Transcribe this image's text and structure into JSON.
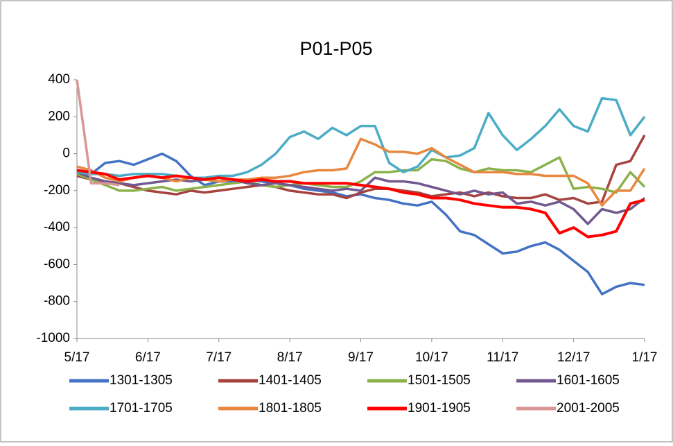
{
  "chart_data": {
    "type": "line",
    "title": "P01-P05",
    "categories": [
      "5/17",
      null,
      null,
      null,
      null,
      "6/17",
      null,
      null,
      null,
      null,
      "7/17",
      null,
      null,
      null,
      null,
      "8/17",
      null,
      null,
      null,
      null,
      "9/17",
      null,
      null,
      null,
      null,
      "10/17",
      null,
      null,
      null,
      null,
      "11/17",
      null,
      null,
      null,
      null,
      "12/17",
      null,
      null,
      null,
      null,
      "1/17"
    ],
    "ylim": [
      -1000,
      400
    ],
    "yticks": [
      -1000,
      -800,
      -600,
      -400,
      -200,
      0,
      200,
      400
    ],
    "series": [
      {
        "name": "1301-1305",
        "color": "#4472c4",
        "values": [
          -100,
          -110,
          -50,
          -40,
          -60,
          -30,
          0,
          -40,
          -120,
          -170,
          -150,
          -150,
          -140,
          -150,
          -160,
          -170,
          -190,
          -200,
          -210,
          -230,
          -220,
          -240,
          -250,
          -270,
          -280,
          -260,
          -330,
          -420,
          -440,
          -490,
          -540,
          -530,
          -500,
          -480,
          -520,
          -580,
          -640,
          -760,
          -720,
          -700,
          -710
        ]
      },
      {
        "name": "1401-1405",
        "color": "#a5433f",
        "values": [
          -120,
          -140,
          -150,
          -160,
          -180,
          -200,
          -210,
          -220,
          -200,
          -210,
          -200,
          -190,
          -180,
          -170,
          -180,
          -200,
          -210,
          -220,
          -220,
          -240,
          -210,
          -190,
          -190,
          -200,
          -210,
          -230,
          -220,
          -210,
          -230,
          -210,
          -230,
          -240,
          -240,
          -220,
          -250,
          -240,
          -270,
          -260,
          -60,
          -40,
          100
        ]
      },
      {
        "name": "1501-1505",
        "color": "#8bb14b",
        "values": [
          -110,
          -140,
          -170,
          -200,
          -200,
          -190,
          -180,
          -200,
          -190,
          -180,
          -170,
          -160,
          -150,
          -170,
          -180,
          -170,
          -160,
          -170,
          -180,
          -180,
          -150,
          -100,
          -100,
          -90,
          -90,
          -30,
          -40,
          -80,
          -100,
          -80,
          -90,
          -90,
          -100,
          -60,
          -20,
          -190,
          -180,
          -190,
          -210,
          -100,
          -180
        ]
      },
      {
        "name": "1601-1605",
        "color": "#71588f",
        "values": [
          -100,
          -130,
          -150,
          -160,
          -170,
          -160,
          -150,
          -140,
          -150,
          -140,
          -150,
          -140,
          -160,
          -170,
          -160,
          -170,
          -180,
          -190,
          -200,
          -190,
          -200,
          -130,
          -150,
          -150,
          -160,
          -180,
          -200,
          -220,
          -200,
          -220,
          -210,
          -270,
          -260,
          -280,
          -260,
          -300,
          -380,
          -300,
          -320,
          -300,
          -240
        ]
      },
      {
        "name": "1701-1705",
        "color": "#4bacc6",
        "values": [
          -100,
          -110,
          -110,
          -120,
          -110,
          -110,
          -110,
          -120,
          -130,
          -130,
          -120,
          -120,
          -100,
          -60,
          0,
          90,
          120,
          80,
          140,
          100,
          150,
          150,
          -50,
          -100,
          -70,
          20,
          -20,
          -10,
          30,
          220,
          100,
          20,
          80,
          150,
          240,
          150,
          120,
          300,
          290,
          100,
          200
        ]
      },
      {
        "name": "1801-1805",
        "color": "#e8873f",
        "values": [
          -70,
          -90,
          -130,
          -150,
          -130,
          -120,
          -130,
          -150,
          -130,
          -140,
          -150,
          -140,
          -140,
          -130,
          -130,
          -120,
          -100,
          -90,
          -90,
          -80,
          80,
          50,
          10,
          10,
          0,
          30,
          -20,
          -60,
          -100,
          -100,
          -100,
          -110,
          -110,
          -120,
          -120,
          -120,
          -160,
          -280,
          -200,
          -200,
          -80
        ]
      },
      {
        "name": "1901-1905",
        "color": "#ff0000",
        "values": [
          -90,
          -100,
          -110,
          -140,
          -130,
          -120,
          -130,
          -120,
          -130,
          -140,
          -130,
          -140,
          -150,
          -140,
          -150,
          -150,
          -160,
          -160,
          -160,
          -160,
          -170,
          -180,
          -190,
          -210,
          -220,
          -240,
          -240,
          -250,
          -270,
          -280,
          -290,
          -290,
          -300,
          -320,
          -430,
          -400,
          -450,
          -440,
          -420,
          -270,
          -250
        ]
      },
      {
        "name": "2001-2005",
        "color": "#d99694",
        "values": [
          400,
          -160,
          -160,
          -170,
          null,
          null,
          null,
          null,
          null,
          null,
          null,
          null,
          null,
          null,
          null,
          null,
          null,
          null,
          null,
          null,
          null,
          null,
          null,
          null,
          null,
          null,
          null,
          null,
          null,
          null,
          null,
          null,
          null,
          null,
          null,
          null,
          null,
          null,
          null,
          null,
          null
        ]
      }
    ]
  }
}
